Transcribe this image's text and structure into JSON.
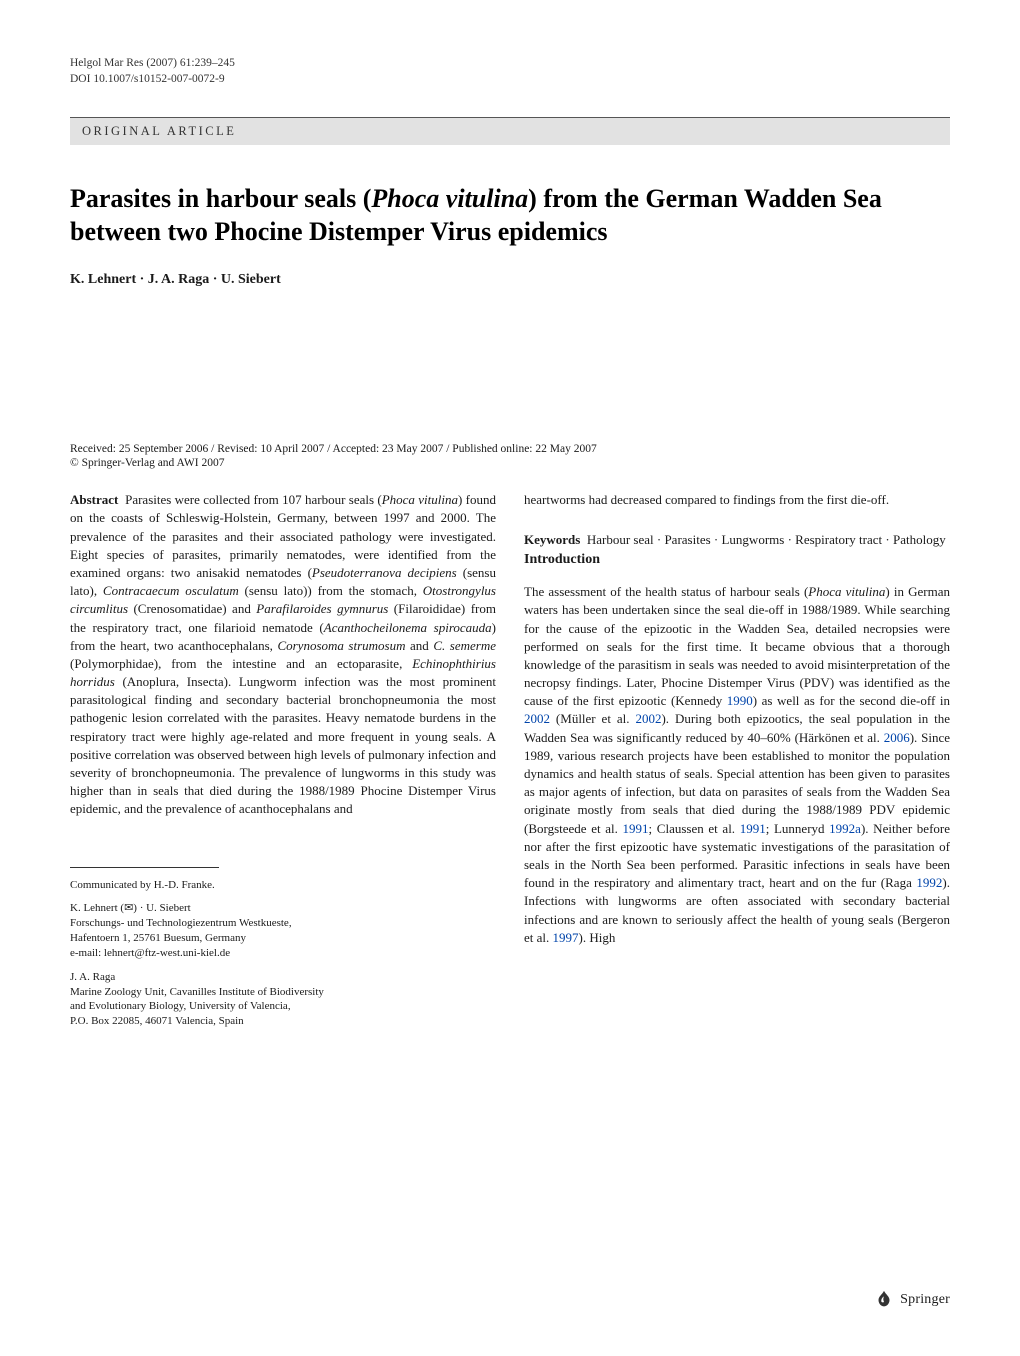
{
  "journal_ref": "Helgol Mar Res (2007) 61:239–245",
  "doi": "DOI 10.1007/s10152-007-0072-9",
  "article_type": "ORIGINAL ARTICLE",
  "title_part1": "Parasites in harbour seals (",
  "title_species": "Phoca vitulina",
  "title_part2": ") from the German Wadden Sea between two Phocine Distemper Virus epidemics",
  "authors": "K. Lehnert · J. A. Raga · U. Siebert",
  "received": "Received: 25 September 2006 / Revised: 10 April 2007 / Accepted: 23 May 2007 / Published online: 22 May 2007",
  "copyright": "© Springer-Verlag and AWI 2007",
  "abstract_label": "Abstract",
  "abstract_body": "Parasites were collected from 107 harbour seals (Phoca vitulina) found on the coasts of Schleswig-Holstein, Germany, between 1997 and 2000. The prevalence of the parasites and their associated pathology were investigated. Eight species of parasites, primarily nematodes, were identified from the examined organs: two anisakid nematodes (Pseudoterranova decipiens (sensu lato), Contracaecum osculatum (sensu lato)) from the stomach, Otostrongylus circumlitus (Crenosomatidae) and Parafilaroides gymnurus (Filaroididae) from the respiratory tract, one filarioid nematode (Acanthocheilonema spirocauda) from the heart, two acanthocephalans, Corynosoma strumosum and C. semerme (Polymorphidae), from the intestine and an ectoparasite, Echinophthirius horridus (Anoplura, Insecta). Lungworm infection was the most prominent parasitological finding and secondary bacterial bronchopneumonia the most pathogenic lesion correlated with the parasites. Heavy nematode burdens in the respiratory tract were highly age-related and more frequent in young seals. A positive correlation was observed between high levels of pulmonary infection and severity of bronchopneumonia. The prevalence of lungworms in this study was higher than in seals that died during the 1988/1989 Phocine Distemper Virus epidemic, and the prevalence of acanthocephalans and",
  "abstract_tail": "heartworms had decreased compared to findings from the first die-off.",
  "keywords_label": "Keywords",
  "keywords_body": "Harbour seal · Parasites · Lungworms · Respiratory tract · Pathology",
  "intro_heading": "Introduction",
  "intro_body": "The assessment of the health status of harbour seals (Phoca vitulina) in German waters has been undertaken since the seal die-off in 1988/1989. While searching for the cause of the epizootic in the Wadden Sea, detailed necropsies were performed on seals for the first time. It became obvious that a thorough knowledge of the parasitism in seals was needed to avoid misinterpretation of the necropsy findings. Later, Phocine Distemper Virus (PDV) was identified as the cause of the first epizootic (Kennedy 1990) as well as for the second die-off in 2002 (Müller et al. 2002). During both epizootics, the seal population in the Wadden Sea was significantly reduced by 40–60% (Härkönen et al. 2006). Since 1989, various research projects have been established to monitor the population dynamics and health status of seals. Special attention has been given to parasites as major agents of infection, but data on parasites of seals from the Wadden Sea originate mostly from seals that died during the 1988/1989 PDV epidemic (Borgsteede et al. 1991; Claussen et al. 1991; Lunneryd 1992a). Neither before nor after the first epizootic have systematic investigations of the parasitation of seals in the North Sea been performed. Parasitic infections in seals have been found in the respiratory and alimentary tract, heart and on the fur (Raga 1992). Infections with lungworms are often associated with secondary bacterial infections and are known to seriously affect the health of young seals (Bergeron et al. 1997). High",
  "communicated": "Communicated by H.-D. Franke.",
  "affil1_line1": "K. Lehnert (✉) · U. Siebert",
  "affil1_line2": "Forschungs- und Technologiezentrum Westkueste,",
  "affil1_line3": "Hafentoern 1, 25761 Buesum, Germany",
  "affil1_line4": "e-mail: lehnert@ftz-west.uni-kiel.de",
  "affil2_line1": "J. A. Raga",
  "affil2_line2": "Marine Zoology Unit, Cavanilles Institute of Biodiversity",
  "affil2_line3": "and Evolutionary Biology, University of Valencia,",
  "affil2_line4": "P.O. Box 22085, 46071 Valencia, Spain",
  "springer": "Springer",
  "colors": {
    "text": "#1a1a1a",
    "bg": "#ffffff",
    "bar_bg": "#e2e2e2",
    "link": "#0044aa"
  },
  "fonts": {
    "body_pt": 13,
    "title_pt": 26,
    "meta_pt": 11.5,
    "footnote_pt": 11
  }
}
